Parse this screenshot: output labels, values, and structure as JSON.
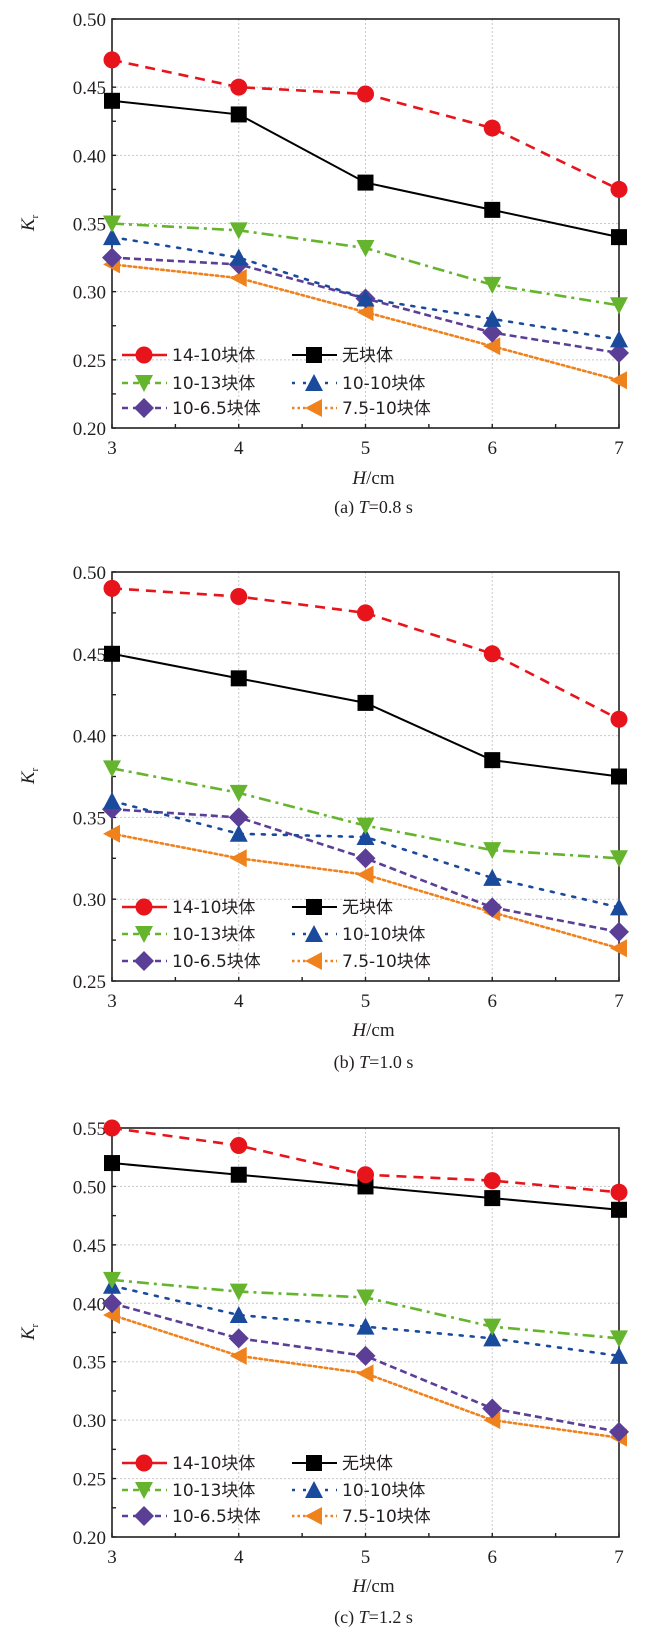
{
  "chart_data": [
    {
      "type": "line",
      "caption_prefix": "(a) ",
      "caption_var": "T",
      "caption_rest": "=0.8 s",
      "xlabel_var": "H",
      "xlabel_unit": "/cm",
      "ylabel_main": "K",
      "ylabel_sub": "r",
      "x": [
        3,
        4,
        5,
        6,
        7
      ],
      "xlim": [
        3,
        7
      ],
      "ylim": [
        0.2,
        0.5
      ],
      "yticks": [
        "0.20",
        "0.25",
        "0.30",
        "0.35",
        "0.40",
        "0.45",
        "0.50"
      ],
      "xticks": [
        "3",
        "4",
        "5",
        "6",
        "7"
      ],
      "grid": true,
      "legend_position": "bottom-left",
      "series": [
        {
          "name": "14-10块体",
          "values": [
            0.47,
            0.45,
            0.445,
            0.42,
            0.375
          ]
        },
        {
          "name": "无块体",
          "values": [
            0.44,
            0.43,
            0.38,
            0.36,
            0.34
          ]
        },
        {
          "name": "10-13块体",
          "values": [
            0.35,
            0.345,
            0.332,
            0.305,
            0.29
          ]
        },
        {
          "name": "10-10块体",
          "values": [
            0.34,
            0.325,
            0.295,
            0.28,
            0.265
          ]
        },
        {
          "name": "10-6.5块体",
          "values": [
            0.325,
            0.32,
            0.295,
            0.27,
            0.255
          ]
        },
        {
          "name": "7.5-10块体",
          "values": [
            0.32,
            0.31,
            0.285,
            0.26,
            0.235
          ]
        }
      ]
    },
    {
      "type": "line",
      "caption_prefix": "(b) ",
      "caption_var": "T",
      "caption_rest": "=1.0 s",
      "xlabel_var": "H",
      "xlabel_unit": "/cm",
      "ylabel_main": "K",
      "ylabel_sub": "r",
      "x": [
        3,
        4,
        5,
        6,
        7
      ],
      "xlim": [
        3,
        7
      ],
      "ylim": [
        0.25,
        0.5
      ],
      "yticks": [
        "0.25",
        "0.30",
        "0.35",
        "0.40",
        "0.45",
        "0.50"
      ],
      "xticks": [
        "3",
        "4",
        "5",
        "6",
        "7"
      ],
      "grid": true,
      "legend_position": "bottom-left",
      "series": [
        {
          "name": "14-10块体",
          "values": [
            0.49,
            0.485,
            0.475,
            0.45,
            0.41
          ]
        },
        {
          "name": "无块体",
          "values": [
            0.45,
            0.435,
            0.42,
            0.385,
            0.375
          ]
        },
        {
          "name": "10-13块体",
          "values": [
            0.38,
            0.365,
            0.345,
            0.33,
            0.325
          ]
        },
        {
          "name": "10-10块体",
          "values": [
            0.36,
            0.34,
            0.338,
            0.313,
            0.295
          ]
        },
        {
          "name": "10-6.5块体",
          "values": [
            0.355,
            0.35,
            0.325,
            0.295,
            0.28
          ]
        },
        {
          "name": "7.5-10块体",
          "values": [
            0.34,
            0.325,
            0.315,
            0.292,
            0.27
          ]
        }
      ]
    },
    {
      "type": "line",
      "caption_prefix": "(c) ",
      "caption_var": "T",
      "caption_rest": "=1.2 s",
      "xlabel_var": "H",
      "xlabel_unit": "/cm",
      "ylabel_main": "K",
      "ylabel_sub": "r",
      "x": [
        3,
        4,
        5,
        6,
        7
      ],
      "xlim": [
        3,
        7
      ],
      "ylim": [
        0.2,
        0.55
      ],
      "yticks": [
        "0.20",
        "0.25",
        "0.30",
        "0.35",
        "0.40",
        "0.45",
        "0.50",
        "0.55"
      ],
      "xticks": [
        "3",
        "4",
        "5",
        "6",
        "7"
      ],
      "grid": true,
      "legend_position": "bottom-left",
      "series": [
        {
          "name": "14-10块体",
          "values": [
            0.55,
            0.535,
            0.51,
            0.505,
            0.495
          ]
        },
        {
          "name": "无块体",
          "values": [
            0.52,
            0.51,
            0.5,
            0.49,
            0.48
          ]
        },
        {
          "name": "10-13块体",
          "values": [
            0.42,
            0.41,
            0.405,
            0.38,
            0.37
          ]
        },
        {
          "name": "10-10块体",
          "values": [
            0.415,
            0.39,
            0.38,
            0.37,
            0.355
          ]
        },
        {
          "name": "10-6.5块体",
          "values": [
            0.4,
            0.37,
            0.355,
            0.31,
            0.29
          ]
        },
        {
          "name": "7.5-10块体",
          "values": [
            0.39,
            0.355,
            0.34,
            0.3,
            0.285
          ]
        }
      ]
    }
  ],
  "series_styles": [
    {
      "color": "#e8141c",
      "marker": "circle",
      "dash": "dashed"
    },
    {
      "color": "#000000",
      "marker": "square",
      "dash": "solid"
    },
    {
      "color": "#64b42d",
      "marker": "triangle-down",
      "dash": "dashdot"
    },
    {
      "color": "#1a4a9c",
      "marker": "triangle-up",
      "dash": "dotted-sparse"
    },
    {
      "color": "#5b3f97",
      "marker": "diamond",
      "dash": "dashed-short"
    },
    {
      "color": "#f0821e",
      "marker": "triangle-left",
      "dash": "dotted"
    }
  ]
}
